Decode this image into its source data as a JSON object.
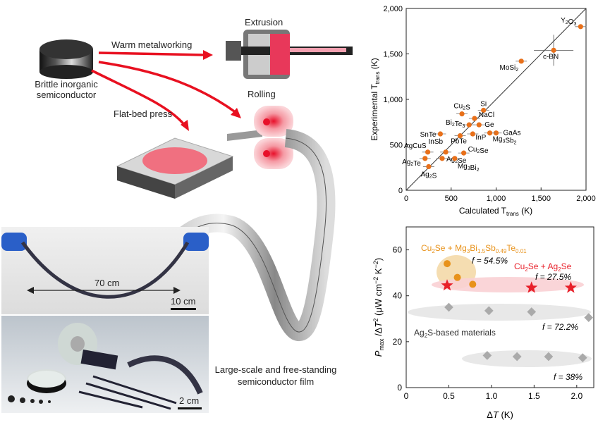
{
  "schematic": {
    "source_label_line1": "Brittle inorganic",
    "source_label_line2": "semiconductor",
    "arrow_warm": "Warm metalworking",
    "label_extrusion": "Extrusion",
    "label_rolling": "Rolling",
    "label_flatbed": "Flat-bed press",
    "film_caption_line1": "Large-scale and free-standing",
    "film_caption_line2": "semiconductor film"
  },
  "photo_top": {
    "length_label": "70 cm",
    "scale_bar": "10 cm"
  },
  "photo_bottom": {
    "scale_bar": "2 cm"
  },
  "chart_data": [
    {
      "type": "scatter",
      "xlabel": "Calculated T",
      "xlabel_sub": "trans",
      "xlabel_unit": " (K)",
      "ylabel": "Experimental T",
      "ylabel_sub": "trans",
      "ylabel_unit": " (K)",
      "xlim": [
        0,
        2000
      ],
      "ylim": [
        0,
        2000
      ],
      "xticks": [
        "0",
        "500",
        "1,000",
        "1,500",
        "2,000"
      ],
      "yticks": [
        "0",
        "500",
        "1,000",
        "1,500",
        "2,000"
      ],
      "color": "#e8701a",
      "points": [
        {
          "label": "Y2O3",
          "x": 1940,
          "y": 1800
        },
        {
          "label": "c-BN",
          "x": 1640,
          "y": 1540
        },
        {
          "label": "MoSi2",
          "x": 1280,
          "y": 1420
        },
        {
          "label": "Si",
          "x": 860,
          "y": 880
        },
        {
          "label": "Cu2S",
          "x": 620,
          "y": 840
        },
        {
          "label": "NaCl",
          "x": 760,
          "y": 790
        },
        {
          "label": "Bi2Te3",
          "x": 700,
          "y": 720
        },
        {
          "label": "Ge",
          "x": 810,
          "y": 720
        },
        {
          "label": "GaAs",
          "x": 1000,
          "y": 630
        },
        {
          "label": "InP",
          "x": 740,
          "y": 620
        },
        {
          "label": "Mg3Sb2",
          "x": 930,
          "y": 630
        },
        {
          "label": "PbTe",
          "x": 600,
          "y": 600
        },
        {
          "label": "SnTe",
          "x": 380,
          "y": 620
        },
        {
          "label": "InSb",
          "x": 440,
          "y": 420
        },
        {
          "label": "Cu2Se",
          "x": 640,
          "y": 410
        },
        {
          "label": "AgCuS",
          "x": 240,
          "y": 420
        },
        {
          "label": "Ag2Te",
          "x": 210,
          "y": 350
        },
        {
          "label": "Ag2Se",
          "x": 400,
          "y": 350
        },
        {
          "label": "Mg3Bi2",
          "x": 540,
          "y": 350
        },
        {
          "label": "Ag2S",
          "x": 250,
          "y": 260
        }
      ]
    },
    {
      "type": "scatter",
      "xlabel": "ΔT (K)",
      "ylabel": "Pmax /ΔT2 (μW cm−2 K−2)",
      "xlim": [
        0,
        2.2
      ],
      "ylim": [
        0,
        70
      ],
      "xticks": [
        "0",
        "0.5",
        "1.0",
        "1.5",
        "2.0"
      ],
      "yticks": [
        "0",
        "20",
        "40",
        "60"
      ],
      "series": [
        {
          "name": "Cu2Se + Mg3Bi1.5Sb0.49Te0.01",
          "color": "#e8921a",
          "f": "f = 54.5%",
          "points": [
            [
              0.48,
              54
            ],
            [
              0.6,
              48
            ],
            [
              0.78,
              45
            ]
          ]
        },
        {
          "name": "Cu2Se + Ag2Se",
          "color": "#e8202a",
          "f": "f = 27.5%",
          "points": [
            [
              0.48,
              44.5
            ],
            [
              1.47,
              43.5
            ],
            [
              1.93,
              43.5
            ]
          ]
        },
        {
          "name": "Ag2S-based materials",
          "color": "#aaaaaa",
          "f": "f = 72.2%",
          "points": [
            [
              0.5,
              35
            ],
            [
              0.97,
              33.5
            ],
            [
              1.47,
              33
            ],
            [
              2.14,
              30.5
            ]
          ]
        },
        {
          "name": "",
          "color": "#aaaaaa",
          "f": "f = 38%",
          "points": [
            [
              0.95,
              14
            ],
            [
              1.3,
              13.5
            ],
            [
              1.67,
              13.5
            ],
            [
              2.07,
              13
            ]
          ]
        }
      ]
    }
  ]
}
